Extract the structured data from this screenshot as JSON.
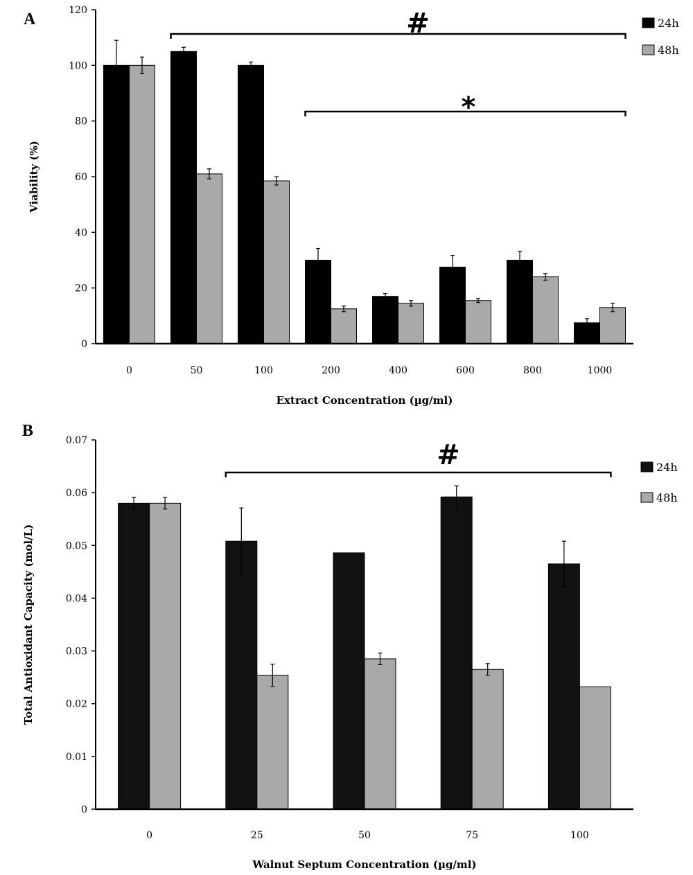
{
  "chart_data": [
    {
      "type": "bar",
      "panel": "A",
      "title": "",
      "xlabel": "Extract Concentration (µg/ml)",
      "ylabel": "Viability (%)",
      "ylim": [
        0,
        120
      ],
      "yticks": [
        0,
        20,
        40,
        60,
        80,
        100,
        120
      ],
      "categories": [
        "0",
        "50",
        "100",
        "200",
        "400",
        "600",
        "800",
        "1000"
      ],
      "series": [
        {
          "name": "24h",
          "color": "#000000",
          "values": [
            100,
            105,
            100,
            30,
            17,
            27.5,
            30,
            7.5
          ],
          "errors": [
            9,
            1.5,
            1.2,
            4.2,
            1,
            4.2,
            3.2,
            1.5
          ]
        },
        {
          "name": "48h",
          "color": "#a9a9a9",
          "values": [
            100,
            61,
            58.5,
            12.5,
            14.5,
            15.5,
            24,
            13
          ],
          "errors": [
            3,
            1.8,
            1.5,
            1,
            1,
            0.7,
            1.2,
            1.5
          ]
        }
      ],
      "grid": false,
      "legend": "top-right",
      "annotations": [
        {
          "symbol": "#",
          "from_category": "50",
          "to_category": "1000"
        },
        {
          "symbol": "*",
          "from_category": "200",
          "to_category": "1000"
        }
      ]
    },
    {
      "type": "bar",
      "panel": "B",
      "title": "",
      "xlabel": "Walnut Septum Concentration (µg/ml)",
      "ylabel": "Total Antioxidant Capacity (mol/L)",
      "ylim": [
        0,
        0.07
      ],
      "yticks": [
        "0",
        "0.01",
        "0.02",
        "0.03",
        "0.04",
        "0.05",
        "0.06",
        "0.07"
      ],
      "categories": [
        "0",
        "25",
        "50",
        "75",
        "100"
      ],
      "series": [
        {
          "name": "24h",
          "color": "#111111",
          "values": [
            0.058,
            0.0508,
            0.0486,
            0.0592,
            0.0465
          ],
          "errors": [
            0.0011,
            0.0063,
            0,
            0.0021,
            0.0043
          ]
        },
        {
          "name": "48h",
          "color": "#a9a9a9",
          "values": [
            0.058,
            0.0254,
            0.0285,
            0.0265,
            0.0232
          ],
          "errors": [
            0.0011,
            0.0021,
            0.0011,
            0.0011,
            0
          ]
        }
      ],
      "grid": false,
      "legend": "top-right",
      "annotations": [
        {
          "symbol": "#",
          "from_category": "25",
          "to_category": "100"
        }
      ]
    }
  ]
}
